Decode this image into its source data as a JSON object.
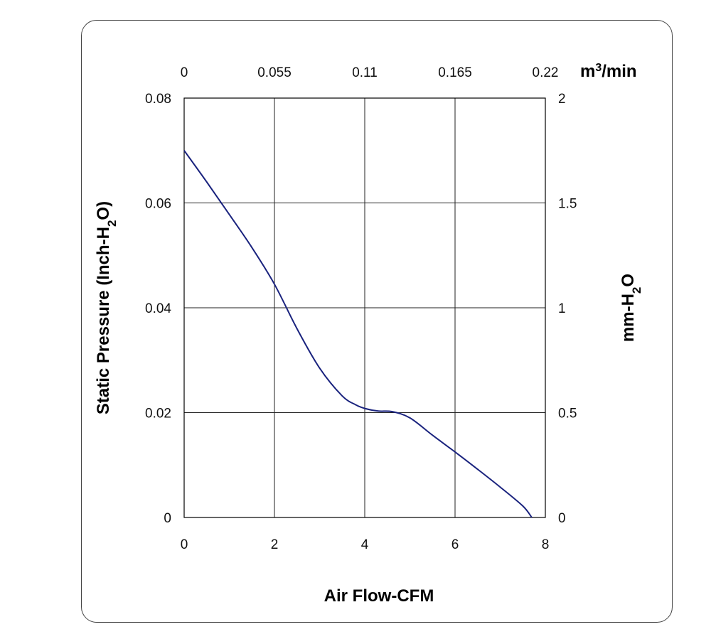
{
  "chart_data": {
    "type": "line",
    "xlabel": "Air Flow-CFM",
    "ylabel": "Static Pressure (Inch-H",
    "ylabel_sub": "2",
    "ylabel_tail": "O)",
    "y2label": "mm-H",
    "y2label_sub": "2",
    "y2label_tail": "O",
    "x2label": "m",
    "x2label_sup": "3",
    "x2label_tail": "/min",
    "xlim": [
      0,
      8
    ],
    "ylim": [
      0,
      0.08
    ],
    "x_ticks": [
      "0",
      "2",
      "4",
      "6",
      "8"
    ],
    "y_ticks": [
      "0",
      "0.02",
      "0.04",
      "0.06",
      "0.08"
    ],
    "y2_ticks": [
      "0",
      "0.5",
      "1",
      "1.5",
      "2"
    ],
    "x2_ticks": [
      "0",
      "0.055",
      "0.11",
      "0.165",
      "0.22"
    ],
    "grid": true,
    "line_color": "#1a237e",
    "series": [
      {
        "x": [
          0,
          0.5,
          1.0,
          1.5,
          2.0,
          2.5,
          3.0,
          3.5,
          3.8,
          4.0,
          4.3,
          4.6,
          5.0,
          5.5,
          6.0,
          6.5,
          7.0,
          7.5,
          7.7
        ],
        "y": [
          0.07,
          0.064,
          0.0578,
          0.0515,
          0.0445,
          0.036,
          0.0285,
          0.0232,
          0.0215,
          0.0208,
          0.0203,
          0.0202,
          0.019,
          0.0157,
          0.0125,
          0.0092,
          0.0058,
          0.0022,
          0.0
        ]
      }
    ]
  }
}
